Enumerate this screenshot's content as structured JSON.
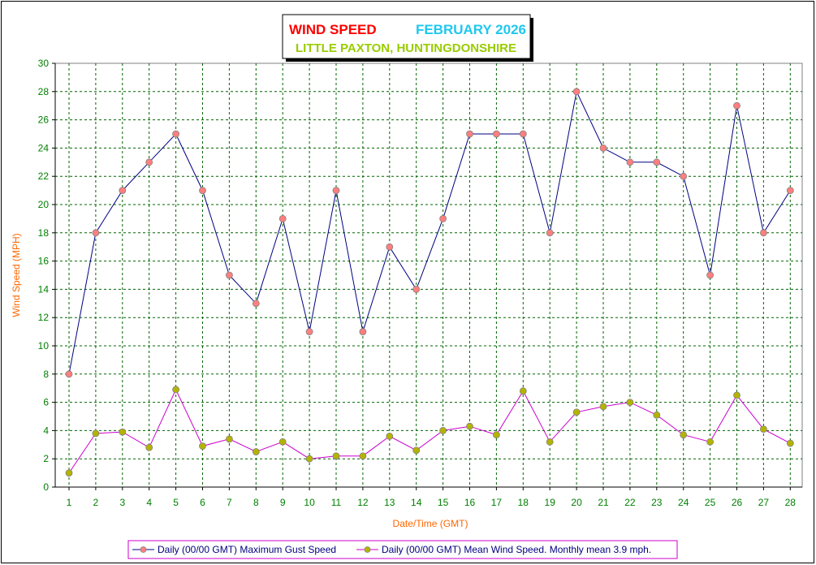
{
  "colors": {
    "title_main": "#ff0000",
    "title_month": "#1ec8f0",
    "title_location": "#99cc00",
    "tick": "#008000",
    "axis_label": "#ff6600",
    "grid": "#006400",
    "gust_line": "#000080",
    "gust_marker": "#ff7f7f",
    "mean_line": "#cc00cc",
    "mean_marker": "#b4b400",
    "legend_text": "#000080",
    "legend_border": "#cc00cc"
  },
  "chart_data": {
    "type": "line",
    "title": "WIND SPEED",
    "title_month": "FEBRUARY 2026",
    "subtitle": "LITTLE PAXTON, HUNTINGDONSHIRE",
    "xlabel": "Date/Time (GMT)",
    "ylabel": "Wind Speed (MPH)",
    "ylim": [
      0,
      30
    ],
    "y_ticks": [
      0,
      2,
      4,
      6,
      8,
      10,
      12,
      14,
      16,
      18,
      20,
      22,
      24,
      26,
      28,
      30
    ],
    "grid": true,
    "legend_position": "bottom",
    "x": [
      1,
      2,
      3,
      4,
      5,
      6,
      7,
      8,
      9,
      10,
      11,
      12,
      13,
      14,
      15,
      16,
      17,
      18,
      19,
      20,
      21,
      22,
      23,
      24,
      25,
      26,
      27,
      28
    ],
    "series": [
      {
        "name": "Daily (00/00 GMT) Maximum Gust Speed",
        "values": [
          8,
          18,
          21,
          23,
          25,
          21,
          15,
          13,
          19,
          11,
          21,
          11,
          17,
          14,
          19,
          25,
          25,
          25,
          18,
          28,
          24,
          23,
          23,
          22,
          15,
          27,
          18,
          21
        ]
      },
      {
        "name": "Daily (00/00 GMT) Mean Wind Speed. Monthly mean 3.9 mph.",
        "values": [
          1.0,
          3.8,
          3.9,
          2.8,
          6.9,
          2.9,
          3.4,
          2.5,
          3.2,
          2.0,
          2.2,
          2.2,
          3.6,
          2.6,
          4.0,
          4.3,
          3.7,
          6.8,
          3.2,
          5.3,
          5.7,
          6.0,
          5.1,
          3.7,
          3.2,
          6.5,
          4.1,
          3.1
        ]
      }
    ]
  }
}
